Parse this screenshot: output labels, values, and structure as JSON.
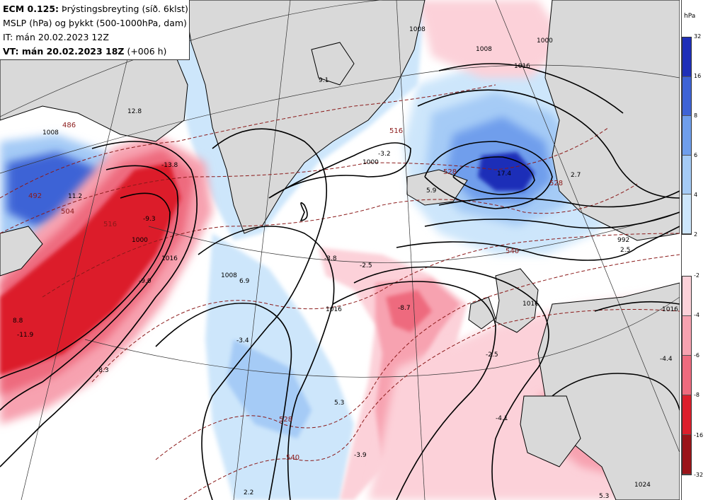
{
  "header": {
    "line1_bold": "ECM 0.125:",
    "line1_rest": " Þrýstingsbreyting (síð. 6klst)",
    "line2": "MSLP (hPa) og þykkt (500-1000hPa, dam)",
    "line3": "IT: mán 20.02.2023 12Z",
    "line4_bold": "VT: mán 20.02.2023 18Z",
    "line4_rest": " (+006 h)"
  },
  "colorbar": {
    "unit": "hPa",
    "positive": {
      "colors": [
        "#1f2fb8",
        "#3e63d6",
        "#6f9eec",
        "#a5cbf6",
        "#cde6fb"
      ],
      "ticks": [
        "32",
        "16",
        "8",
        "6",
        "4",
        "2"
      ]
    },
    "negative": {
      "colors": [
        "#fcd1d9",
        "#f7a2b0",
        "#ee6b7e",
        "#dc1f2c",
        "#9a1419"
      ],
      "ticks": [
        "-2",
        "-4",
        "-6",
        "-8",
        "-16",
        "-32"
      ]
    }
  },
  "colors": {
    "land": "#d9d9d9",
    "sea": "#ffffff",
    "isobar": "#000000",
    "thickness": "#8b1a1a"
  },
  "map": {
    "isobar_labels": [
      "1008",
      "1000",
      "1008",
      "1016",
      "1008",
      "1016",
      "1000",
      "1016",
      "1008",
      "1016",
      "992",
      "1000",
      "1024",
      "1016"
    ],
    "thickness_labels": [
      "486",
      "492",
      "504",
      "516",
      "528",
      "540",
      "528",
      "540",
      "516",
      "528"
    ],
    "change_labels": [
      "12.8",
      "-13.8",
      "11.2",
      "-9.3",
      "8.8",
      "-11.9",
      "-9.0",
      "-8.3",
      "6.9",
      "-3.4",
      "5.3",
      "-3.9",
      "2.2",
      "-3.8",
      "-2.5",
      "-8.7",
      "-3.2",
      "17.4",
      "5.9",
      "2.7",
      "2.5",
      "-2.5",
      "-4.1",
      "-4.4",
      "5.3",
      "9.1"
    ]
  }
}
